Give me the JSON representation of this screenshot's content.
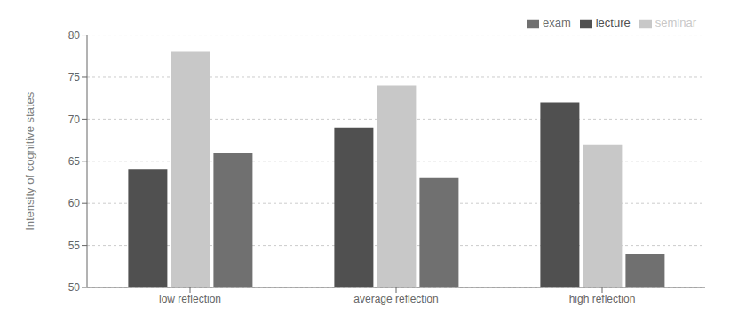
{
  "chart_data": {
    "type": "bar",
    "categories": [
      "low reflection",
      "average reflection",
      "high reflection"
    ],
    "series": [
      {
        "name": "lecture",
        "color": "#505050",
        "values": [
          64,
          69,
          72
        ]
      },
      {
        "name": "seminar",
        "color": "#c8c8c8",
        "values": [
          78,
          74,
          67
        ]
      },
      {
        "name": "exam",
        "color": "#707070",
        "values": [
          66,
          63,
          54
        ]
      }
    ],
    "ylabel": "Intensity of cognitive states",
    "ylim": [
      50,
      80
    ],
    "yticks": [
      50,
      55,
      60,
      65,
      70,
      75,
      80
    ],
    "grid": true,
    "legend": "upper right"
  }
}
